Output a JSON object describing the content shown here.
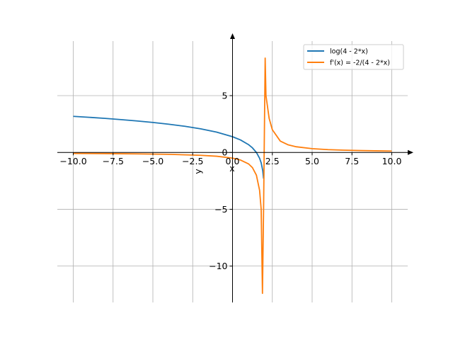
{
  "chart_data": {
    "type": "line",
    "title": "",
    "xlabel": "x",
    "ylabel": "y",
    "xlim": [
      -11.0,
      11.0
    ],
    "ylim": [
      -13.2,
      9.8
    ],
    "grid": true,
    "legend_position": "top-right",
    "x_ticks": [
      -10.0,
      -7.5,
      -5.0,
      -2.5,
      0.0,
      2.5,
      5.0,
      7.5,
      10.0
    ],
    "x_tick_labels": [
      "−10.0",
      "−7.5",
      "−5.0",
      "−2.5",
      "0.0",
      "2.5",
      "5.0",
      "7.5",
      "10.0"
    ],
    "y_ticks": [
      -10,
      -5,
      0,
      5
    ],
    "y_tick_labels": [
      "−10",
      "−5",
      "0",
      "5"
    ],
    "series": [
      {
        "name": "log(4 - 2*x)",
        "color": "#1f77b4",
        "x": [
          -10,
          -9,
          -8,
          -7,
          -6,
          -5,
          -4,
          -3,
          -2,
          -1,
          0,
          0.5,
          1,
          1.25,
          1.5,
          1.7,
          1.8,
          1.9,
          1.95
        ],
        "y": [
          3.178,
          3.091,
          2.996,
          2.89,
          2.773,
          2.639,
          2.485,
          2.303,
          2.079,
          1.792,
          1.386,
          1.099,
          0.693,
          0.405,
          0.0,
          -0.511,
          -0.916,
          -1.609,
          -2.303
        ]
      },
      {
        "name": "f'(x) = -2/(4 - 2*x)",
        "color": "#ff7f0e",
        "x": [
          -10,
          -8,
          -6,
          -4,
          -2,
          -1,
          0,
          0.5,
          1,
          1.25,
          1.5,
          1.7,
          1.8,
          1.88,
          1.95,
          2.05,
          2.1,
          2.3,
          2.5,
          3,
          3.5,
          4,
          5,
          6,
          7,
          8,
          9,
          10
        ],
        "y": [
          -0.083,
          -0.1,
          -0.125,
          -0.167,
          -0.25,
          -0.333,
          -0.5,
          -0.667,
          -1.0,
          -1.333,
          -2.0,
          -3.333,
          -5.0,
          -12.4,
          -5.0,
          8.3,
          5.0,
          3.0,
          2.0,
          1.0,
          0.667,
          0.5,
          0.333,
          0.25,
          0.2,
          0.167,
          0.143,
          0.125
        ]
      }
    ]
  }
}
